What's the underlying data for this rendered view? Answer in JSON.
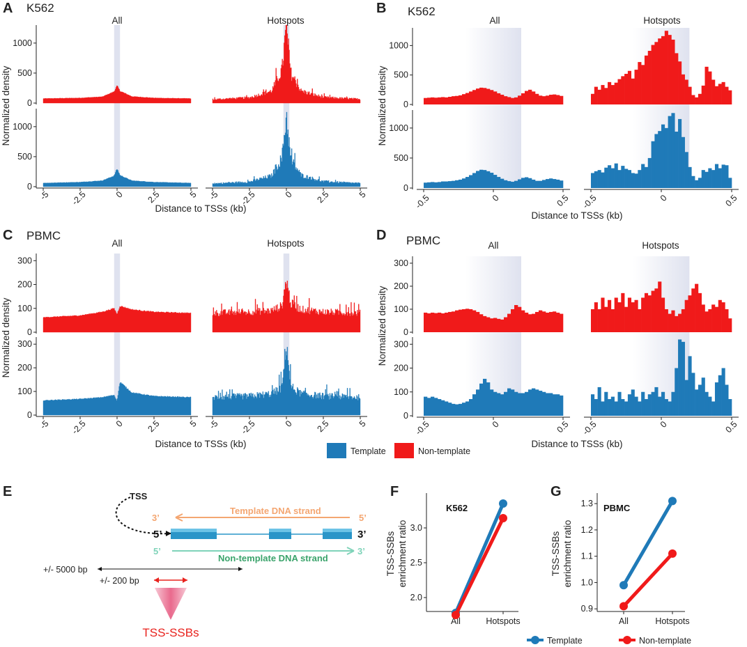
{
  "panels": {
    "A": "A",
    "B": "B",
    "C": "C",
    "D": "D",
    "E": "E",
    "F": "F",
    "G": "G"
  },
  "cells": {
    "k562": "K562",
    "pbmc": "PBMC"
  },
  "facets": {
    "all": "All",
    "hotspots": "Hotspots"
  },
  "labels": {
    "ylabel": "Normalized density",
    "xlabel": "Distance to TSSs (kb)",
    "ratio_line1": "TSS-SSBs",
    "ratio_line2": "enrichment ratio"
  },
  "legend": {
    "template": "Template",
    "nontemplate": "Non-template"
  },
  "colors": {
    "template": "#1f7ab8",
    "nontemplate": "#f01a1a",
    "shade": "#dfe2ef",
    "tss": "#222222",
    "template_strand": "#f4a671",
    "nontemplate_strand": "#7fd3b9",
    "nontemplate_text": "#3aa36b",
    "red_arrow": "#e8221d",
    "ssb": "#e8221d"
  },
  "diagram": {
    "tss": "TSS",
    "prime3": "3’",
    "prime5": "5’",
    "template_strand": "Template DNA strand",
    "nontemplate_strand": "Non-template DNA strand",
    "range_5000": "+/- 5000 bp",
    "range_200": "+/- 200 bp",
    "ssbs": "TSS-SSBs"
  },
  "chart_data": [
    {
      "id": "A",
      "type": "bar",
      "cell": "K562",
      "title": "All / Hotspots",
      "xlabel": "Distance to TSSs (kb)",
      "ylabel": "Normalized density",
      "x_range_kb": [
        -5,
        5
      ],
      "xticks": [
        "-5",
        "-2.5",
        "0",
        "2.5",
        "5"
      ],
      "shaded_kb": [
        -0.2,
        0.2
      ],
      "rows": [
        {
          "strand": "Non-template",
          "ylim": [
            0,
            1300
          ],
          "yticks": [
            "0",
            "500",
            "1000"
          ],
          "facets": [
            {
              "facet": "All",
              "x_kb": [
                -5,
                -2.5,
                -1,
                -0.2,
                0,
                0.2,
                1,
                2.5,
                5
              ],
              "values": [
                75,
                85,
                105,
                190,
                290,
                200,
                110,
                85,
                75
              ],
              "noise": 0.08
            },
            {
              "facet": "Hotspots",
              "x_kb": [
                -5,
                -2.5,
                -1,
                -0.3,
                0,
                0.3,
                1,
                2.5,
                5
              ],
              "values": [
                60,
                90,
                200,
                550,
                1270,
                500,
                200,
                95,
                65
              ],
              "noise": 0.45
            }
          ]
        },
        {
          "strand": "Template",
          "ylim": [
            0,
            1300
          ],
          "yticks": [
            "0",
            "500",
            "1000"
          ],
          "facets": [
            {
              "facet": "All",
              "x_kb": [
                -5,
                -2.5,
                -1,
                -0.2,
                0,
                0.2,
                1,
                2.5,
                5
              ],
              "values": [
                60,
                75,
                100,
                180,
                300,
                190,
                100,
                75,
                60
              ],
              "noise": 0.08
            },
            {
              "facet": "Hotspots",
              "x_kb": [
                -5,
                -2.5,
                -1,
                -0.3,
                0,
                0.3,
                1,
                2.5,
                5
              ],
              "values": [
                50,
                80,
                180,
                480,
                1200,
                450,
                190,
                85,
                55
              ],
              "noise": 0.45
            }
          ]
        }
      ]
    },
    {
      "id": "B",
      "type": "bar",
      "cell": "K562",
      "title": "All / Hotspots",
      "xlabel": "Distance to TSSs (kb)",
      "ylabel": "Normalized density",
      "x_range_kb": [
        -0.5,
        0.5
      ],
      "xticks": [
        "-0.5",
        "0",
        "0.5"
      ],
      "shaded_kb": [
        -0.2,
        0.2
      ],
      "rows": [
        {
          "strand": "Non-template",
          "ylim": [
            0,
            1300
          ],
          "yticks": [
            "0",
            "500",
            "1000"
          ],
          "facets": [
            {
              "facet": "All",
              "values": [
                110,
                115,
                120,
                115,
                120,
                125,
                120,
                130,
                140,
                145,
                155,
                175,
                195,
                220,
                245,
                270,
                285,
                280,
                265,
                245,
                220,
                190,
                165,
                140,
                125,
                110,
                120,
                150,
                190,
                230,
                250,
                220,
                180,
                150,
                140,
                150,
                165,
                170,
                160,
                145
              ]
            },
            {
              "facet": "Hotspots",
              "values": [
                180,
                300,
                250,
                330,
                280,
                380,
                330,
                370,
                430,
                480,
                520,
                570,
                440,
                590,
                720,
                670,
                830,
                910,
                1010,
                1060,
                1120,
                1160,
                1250,
                1180,
                1100,
                870,
                730,
                510,
                420,
                300,
                160,
                120,
                180,
                320,
                640,
                560,
                420,
                310,
                350,
                380,
                300,
                240
              ]
            }
          ]
        },
        {
          "strand": "Template",
          "ylim": [
            0,
            1300
          ],
          "yticks": [
            "0",
            "500",
            "1000"
          ],
          "facets": [
            {
              "facet": "All",
              "values": [
                90,
                95,
                100,
                95,
                100,
                110,
                110,
                115,
                120,
                130,
                140,
                160,
                185,
                215,
                250,
                285,
                305,
                300,
                280,
                255,
                220,
                185,
                155,
                130,
                115,
                105,
                120,
                145,
                170,
                180,
                165,
                140,
                120,
                120,
                135,
                150,
                160,
                150,
                140,
                125
              ]
            },
            {
              "facet": "Hotspots",
              "values": [
                250,
                280,
                300,
                260,
                340,
                380,
                330,
                410,
                300,
                370,
                320,
                300,
                250,
                240,
                300,
                400,
                350,
                500,
                780,
                900,
                950,
                1060,
                1000,
                1200,
                1250,
                940,
                1150,
                850,
                600,
                350,
                200,
                130,
                170,
                300,
                270,
                330,
                300,
                400,
                330,
                390,
                380,
                170
              ]
            }
          ]
        }
      ]
    },
    {
      "id": "C",
      "type": "bar",
      "cell": "PBMC",
      "title": "All / Hotspots",
      "xlabel": "Distance to TSSs (kb)",
      "ylabel": "Normalized density",
      "x_range_kb": [
        -5,
        5
      ],
      "xticks": [
        "-5",
        "-2.5",
        "0",
        "2.5",
        "5"
      ],
      "shaded_kb": [
        -0.2,
        0.2
      ],
      "rows": [
        {
          "strand": "Non-template",
          "ylim": [
            0,
            330
          ],
          "yticks": [
            "0",
            "100",
            "200",
            "300"
          ],
          "facets": [
            {
              "facet": "All",
              "x_kb": [
                -5,
                -2.5,
                -1,
                -0.2,
                0,
                0.2,
                1,
                2.5,
                5
              ],
              "values": [
                62,
                70,
                85,
                100,
                75,
                110,
                95,
                85,
                80
              ],
              "noise": 0.05
            },
            {
              "facet": "Hotspots",
              "x_kb": [
                -5,
                -2.5,
                -1,
                -0.3,
                0,
                0.3,
                1,
                2.5,
                5
              ],
              "values": [
                80,
                85,
                90,
                110,
                220,
                120,
                95,
                85,
                80
              ],
              "noise": 0.35
            }
          ]
        },
        {
          "strand": "Template",
          "ylim": [
            0,
            330
          ],
          "yticks": [
            "0",
            "100",
            "200",
            "300"
          ],
          "facets": [
            {
              "facet": "All",
              "x_kb": [
                -5,
                -2.5,
                -1,
                -0.2,
                0,
                0.2,
                1,
                2.5,
                5
              ],
              "values": [
                62,
                68,
                75,
                85,
                60,
                140,
                95,
                80,
                75
              ],
              "noise": 0.05
            },
            {
              "facet": "Hotspots",
              "x_kb": [
                -5,
                -2.5,
                -1,
                -0.3,
                0,
                0.3,
                1,
                2.5,
                5
              ],
              "values": [
                75,
                80,
                90,
                115,
                310,
                120,
                90,
                80,
                75
              ],
              "noise": 0.35
            }
          ]
        }
      ]
    },
    {
      "id": "D",
      "type": "bar",
      "cell": "PBMC",
      "title": "All / Hotspots",
      "xlabel": "Distance to TSSs (kb)",
      "ylabel": "Normalized density",
      "x_range_kb": [
        -0.5,
        0.5
      ],
      "xticks": [
        "-0.5",
        "0",
        "0.5"
      ],
      "shaded_kb": [
        -0.2,
        0.2
      ],
      "rows": [
        {
          "strand": "Non-template",
          "ylim": [
            0,
            330
          ],
          "yticks": [
            "0",
            "100",
            "200",
            "300"
          ],
          "facets": [
            {
              "facet": "All",
              "values": [
                85,
                82,
                85,
                83,
                85,
                82,
                85,
                88,
                90,
                95,
                98,
                100,
                102,
                100,
                95,
                88,
                78,
                70,
                65,
                60,
                62,
                58,
                55,
                65,
                80,
                100,
                118,
                110,
                95,
                85,
                78,
                80,
                88,
                95,
                90,
                85,
                88,
                90,
                85,
                80
              ]
            },
            {
              "facet": "Hotspots",
              "values": [
                100,
                130,
                100,
                150,
                110,
                140,
                100,
                150,
                130,
                170,
                110,
                150,
                130,
                140,
                100,
                150,
                170,
                160,
                180,
                190,
                220,
                150,
                100,
                80,
                95,
                70,
                80,
                100,
                140,
                160,
                190,
                210,
                170,
                120,
                90,
                100,
                120,
                110,
                140,
                130,
                100,
                60
              ]
            }
          ]
        },
        {
          "strand": "Template",
          "ylim": [
            0,
            330
          ],
          "yticks": [
            "0",
            "100",
            "200",
            "300"
          ],
          "facets": [
            {
              "facet": "All",
              "values": [
                80,
                75,
                80,
                75,
                70,
                65,
                60,
                55,
                50,
                48,
                50,
                55,
                60,
                70,
                90,
                110,
                135,
                155,
                140,
                110,
                100,
                95,
                90,
                100,
                115,
                110,
                100,
                95,
                95,
                100,
                110,
                115,
                110,
                105,
                100,
                95,
                95,
                90,
                90,
                85
              ]
            },
            {
              "facet": "Hotspots",
              "values": [
                90,
                70,
                120,
                60,
                100,
                70,
                80,
                60,
                100,
                70,
                60,
                90,
                110,
                80,
                60,
                100,
                70,
                90,
                100,
                120,
                80,
                100,
                70,
                60,
                100,
                200,
                320,
                310,
                150,
                250,
                180,
                110,
                130,
                160,
                100,
                80,
                60,
                140,
                170,
                200,
                130,
                70
              ]
            }
          ]
        }
      ]
    },
    {
      "id": "F",
      "type": "line",
      "cell": "K562",
      "categories": [
        "All",
        "Hotspots"
      ],
      "ylim": [
        1.8,
        3.5
      ],
      "yticks": [
        "2.0",
        "2.5",
        "3.0"
      ],
      "ylabel": "TSS-SSBs enrichment ratio",
      "series": [
        {
          "name": "Template",
          "values": [
            1.78,
            3.35
          ]
        },
        {
          "name": "Non-template",
          "values": [
            1.75,
            3.14
          ]
        }
      ]
    },
    {
      "id": "G",
      "type": "line",
      "cell": "PBMC",
      "categories": [
        "All",
        "Hotspots"
      ],
      "ylim": [
        0.89,
        1.34
      ],
      "yticks": [
        "0.9",
        "1.0",
        "1.1",
        "1.2",
        "1.3"
      ],
      "ylabel": "TSS-SSBs enrichment ratio",
      "series": [
        {
          "name": "Template",
          "values": [
            0.99,
            1.31
          ]
        },
        {
          "name": "Non-template",
          "values": [
            0.91,
            1.11
          ]
        }
      ]
    }
  ]
}
